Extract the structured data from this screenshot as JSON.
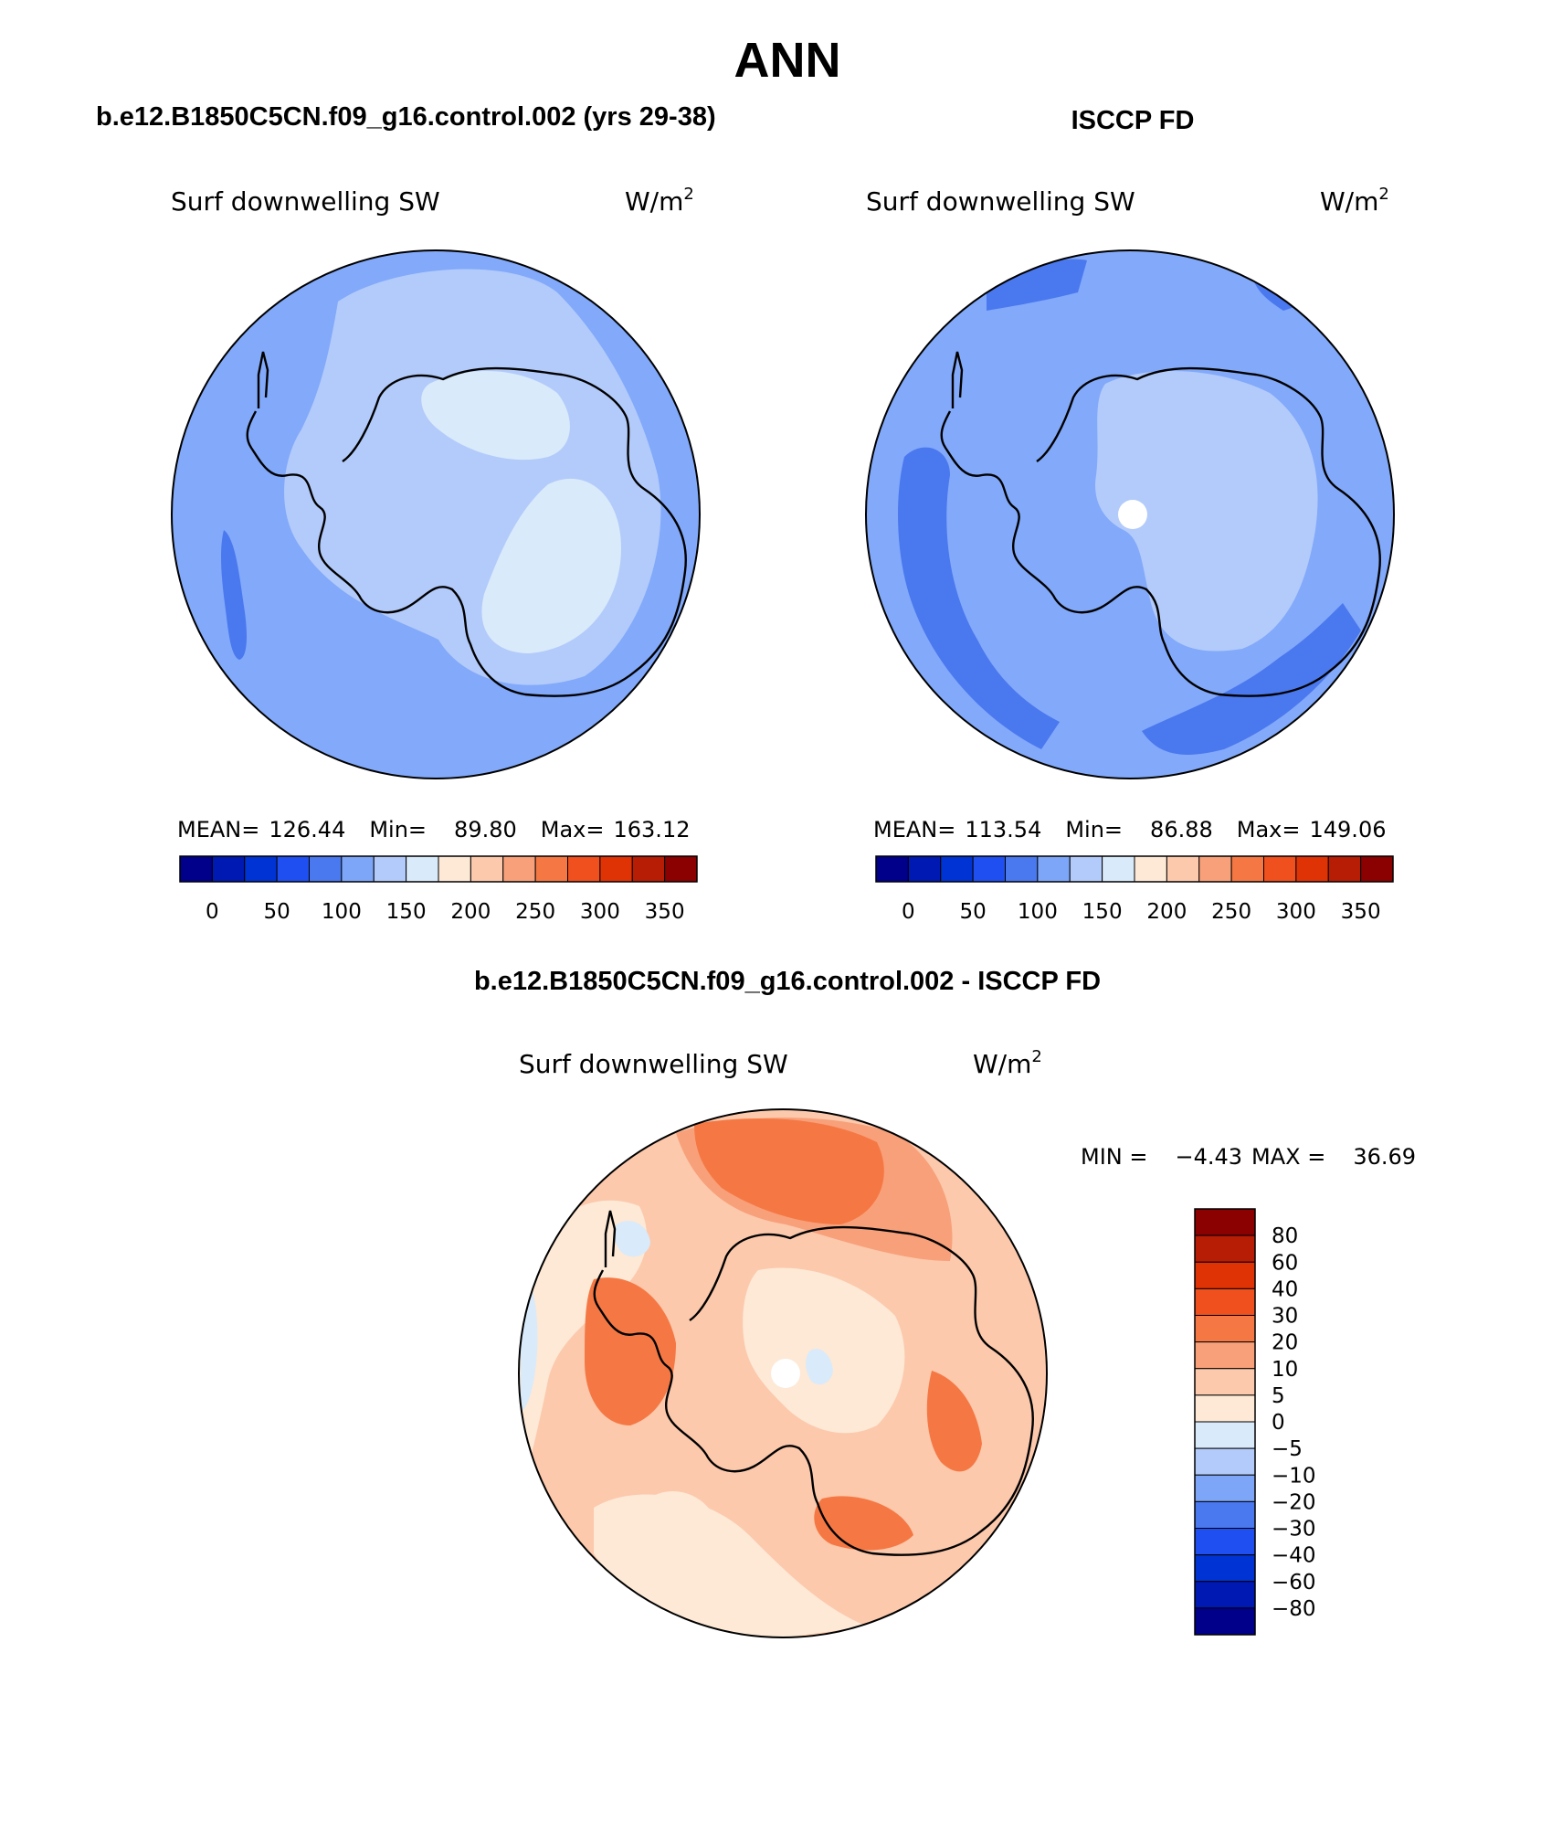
{
  "season": "ANN",
  "panels": {
    "model": {
      "header": "b.e12.B1850C5CN.f09_g16.control.002 (yrs 29-38)",
      "variable": "Surf downwelling SW",
      "units_base": "W/m",
      "units_exp": "2",
      "stats": {
        "mean_label": "MEAN=",
        "mean": "126.44",
        "min_label": "Min=",
        "min": "89.80",
        "max_label": "Max=",
        "max": "163.12"
      }
    },
    "obs": {
      "header": "ISCCP FD",
      "variable": "Surf downwelling SW",
      "units_base": "W/m",
      "units_exp": "2",
      "stats": {
        "mean_label": "MEAN=",
        "mean": "113.54",
        "min_label": "Min=",
        "min": "86.88",
        "max_label": "Max=",
        "max": "149.06"
      }
    },
    "diff": {
      "header": "b.e12.B1850C5CN.f09_g16.control.002 - ISCCP FD",
      "variable": "Surf downwelling SW",
      "units_base": "W/m",
      "units_exp": "2",
      "stats": {
        "min_label": "MIN =",
        "min": "−4.43",
        "max_label": "MAX =",
        "max": "36.69"
      }
    }
  },
  "colorbars": {
    "absolute": {
      "colors": [
        "#00008b",
        "#0019b3",
        "#0033d4",
        "#1f4ff0",
        "#4a78ee",
        "#7ea6f8",
        "#b3cbfa",
        "#d9eafa",
        "#fde9d6",
        "#fcc9ac",
        "#f8a07a",
        "#f57844",
        "#f04f1e",
        "#df3306",
        "#b71c05",
        "#8b0000"
      ],
      "tick_labels": [
        "0",
        "50",
        "100",
        "150",
        "200",
        "250",
        "300",
        "350"
      ]
    },
    "difference": {
      "colors": [
        "#00008b",
        "#0019b3",
        "#0033d4",
        "#1f4ff0",
        "#4a78ee",
        "#7ea6f8",
        "#b3cbfa",
        "#d9eafa",
        "#fde9d6",
        "#fcc9ac",
        "#f8a07a",
        "#f57844",
        "#f04f1e",
        "#df3306",
        "#b71c05",
        "#8b0000"
      ],
      "tick_labels": [
        "80",
        "60",
        "40",
        "30",
        "20",
        "10",
        "5",
        "0",
        "−5",
        "−10",
        "−20",
        "−30",
        "−40",
        "−60",
        "−80"
      ]
    }
  },
  "map_colors": {
    "model_outer": "#82a9fa",
    "model_mid": "#b3cbfa",
    "model_inner": "#d9eafa",
    "model_dark": "#4a78ee",
    "obs_outer": "#82a9fa",
    "obs_inner": "#b3cbfa",
    "obs_dark": "#4a78ee",
    "diff_low": "#fde9d6",
    "diff_mid": "#fcc9ac",
    "diff_high": "#f8a07a",
    "diff_higher": "#f57844",
    "diff_neg": "#d9eafa",
    "pole_hole": "#ffffff"
  }
}
